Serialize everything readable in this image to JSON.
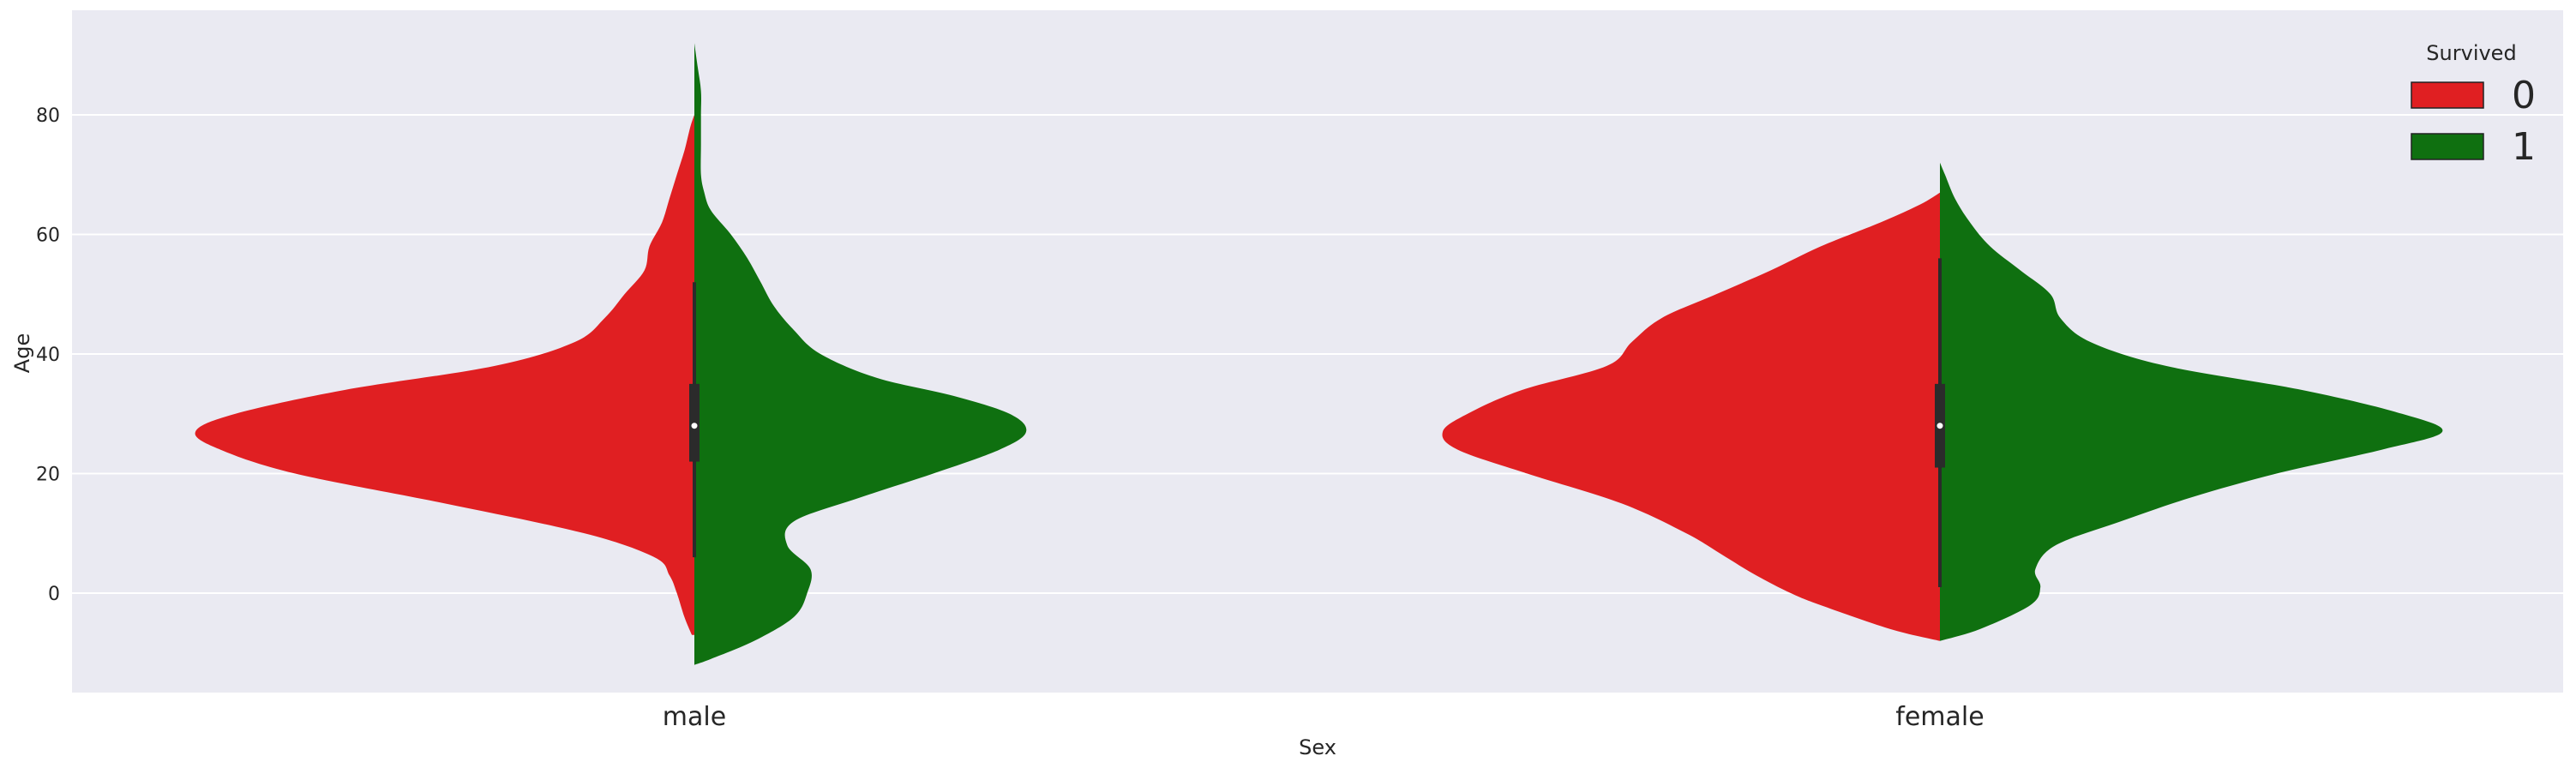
{
  "chart_data": {
    "type": "violin",
    "split": true,
    "xlabel": "Sex",
    "ylabel": "Age",
    "categories": [
      "male",
      "female"
    ],
    "ylim": [
      -17,
      97
    ],
    "yticks": [
      0,
      20,
      40,
      60,
      80
    ],
    "grid": true,
    "legend": {
      "title": "Survived",
      "placement": "top-right",
      "entries": [
        {
          "label": "0",
          "color": "#e01f22"
        },
        {
          "label": "1",
          "color": "#0f7010"
        }
      ]
    },
    "violins": [
      {
        "category": "male",
        "range": [
          -7,
          80
        ],
        "left_color": "#e01f22",
        "right_color": "#0f7010",
        "left_profile": [
          [
            -7,
            0.005
          ],
          [
            -4,
            0.02
          ],
          [
            0,
            0.035
          ],
          [
            3,
            0.05
          ],
          [
            6,
            0.08
          ],
          [
            10,
            0.22
          ],
          [
            15,
            0.5
          ],
          [
            20,
            0.8
          ],
          [
            24,
            0.95
          ],
          [
            27,
            1.0
          ],
          [
            30,
            0.92
          ],
          [
            34,
            0.7
          ],
          [
            38,
            0.4
          ],
          [
            42,
            0.24
          ],
          [
            46,
            0.18
          ],
          [
            50,
            0.14
          ],
          [
            54,
            0.1
          ],
          [
            58,
            0.09
          ],
          [
            62,
            0.065
          ],
          [
            66,
            0.05
          ],
          [
            70,
            0.035
          ],
          [
            74,
            0.02
          ],
          [
            78,
            0.008
          ],
          [
            80,
            0.0
          ]
        ],
        "right_profile": [
          [
            -12,
            0.0
          ],
          [
            -11,
            0.05
          ],
          [
            -8,
            0.18
          ],
          [
            -4,
            0.3
          ],
          [
            0,
            0.34
          ],
          [
            4,
            0.35
          ],
          [
            8,
            0.28
          ],
          [
            12,
            0.3
          ],
          [
            16,
            0.5
          ],
          [
            20,
            0.72
          ],
          [
            24,
            0.92
          ],
          [
            27,
            1.0
          ],
          [
            30,
            0.95
          ],
          [
            33,
            0.78
          ],
          [
            36,
            0.55
          ],
          [
            40,
            0.38
          ],
          [
            44,
            0.3
          ],
          [
            48,
            0.24
          ],
          [
            52,
            0.2
          ],
          [
            56,
            0.16
          ],
          [
            60,
            0.11
          ],
          [
            64,
            0.05
          ],
          [
            67,
            0.03
          ],
          [
            70,
            0.02
          ],
          [
            75,
            0.02
          ],
          [
            80,
            0.02
          ],
          [
            84,
            0.02
          ],
          [
            88,
            0.01
          ],
          [
            92,
            0.0
          ]
        ],
        "box": {
          "q1": 22,
          "median": 28,
          "q3": 35,
          "whisker_low": 6,
          "whisker_high": 52
        }
      },
      {
        "category": "female",
        "range": [
          -8,
          67
        ],
        "left_color": "#e01f22",
        "right_color": "#0f7010",
        "left_profile": [
          [
            -8,
            0.0
          ],
          [
            -6,
            0.1
          ],
          [
            -2,
            0.24
          ],
          [
            0,
            0.3
          ],
          [
            3,
            0.37
          ],
          [
            6,
            0.43
          ],
          [
            10,
            0.51
          ],
          [
            15,
            0.64
          ],
          [
            20,
            0.83
          ],
          [
            24,
            0.97
          ],
          [
            27,
            1.0
          ],
          [
            30,
            0.95
          ],
          [
            34,
            0.84
          ],
          [
            38,
            0.67
          ],
          [
            42,
            0.62
          ],
          [
            46,
            0.56
          ],
          [
            50,
            0.45
          ],
          [
            54,
            0.34
          ],
          [
            58,
            0.24
          ],
          [
            62,
            0.12
          ],
          [
            65,
            0.04
          ],
          [
            67,
            0.0
          ]
        ],
        "right_profile": [
          [
            -8,
            0.0
          ],
          [
            -6,
            0.08
          ],
          [
            -2,
            0.18
          ],
          [
            1,
            0.2
          ],
          [
            4,
            0.19
          ],
          [
            8,
            0.23
          ],
          [
            12,
            0.36
          ],
          [
            16,
            0.5
          ],
          [
            20,
            0.67
          ],
          [
            24,
            0.88
          ],
          [
            27,
            1.0
          ],
          [
            30,
            0.92
          ],
          [
            34,
            0.72
          ],
          [
            38,
            0.45
          ],
          [
            42,
            0.3
          ],
          [
            46,
            0.24
          ],
          [
            50,
            0.22
          ],
          [
            54,
            0.16
          ],
          [
            58,
            0.1
          ],
          [
            62,
            0.06
          ],
          [
            66,
            0.03
          ],
          [
            70,
            0.01
          ],
          [
            72,
            0.0
          ]
        ],
        "box": {
          "q1": 21,
          "median": 28,
          "q3": 35,
          "whisker_low": 1,
          "whisker_high": 56
        }
      }
    ]
  }
}
